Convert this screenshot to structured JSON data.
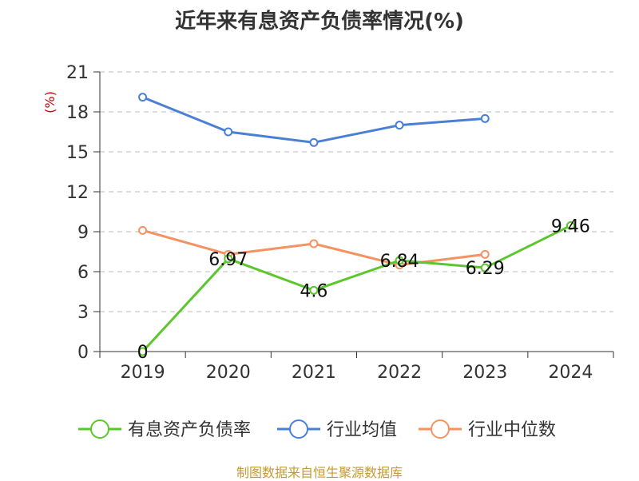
{
  "chart_data": {
    "type": "line",
    "title": "近年来有息资产负债率情况(%)",
    "ylabel": "(%)",
    "categories": [
      "2019",
      "2020",
      "2021",
      "2022",
      "2023",
      "2024"
    ],
    "yticks": [
      0,
      3,
      6,
      9,
      12,
      15,
      18,
      21
    ],
    "ylim": [
      0,
      21
    ],
    "grid": true,
    "legend_position": "bottom",
    "series": [
      {
        "name": "有息资产负债率",
        "color": "#5bc72c",
        "values": [
          0,
          6.97,
          4.6,
          6.84,
          6.29,
          9.46
        ],
        "labels": [
          "0",
          "6.97",
          "4.6",
          "6.84",
          "6.29",
          "9.46"
        ]
      },
      {
        "name": "行业均值",
        "color": "#4a7fd6",
        "values": [
          19.1,
          16.5,
          15.7,
          17.0,
          17.5,
          null
        ]
      },
      {
        "name": "行业中位数",
        "color": "#f59262",
        "values": [
          9.1,
          7.3,
          8.1,
          6.5,
          7.3,
          null
        ]
      }
    ]
  },
  "source_note": "制图数据来自恒生聚源数据库"
}
